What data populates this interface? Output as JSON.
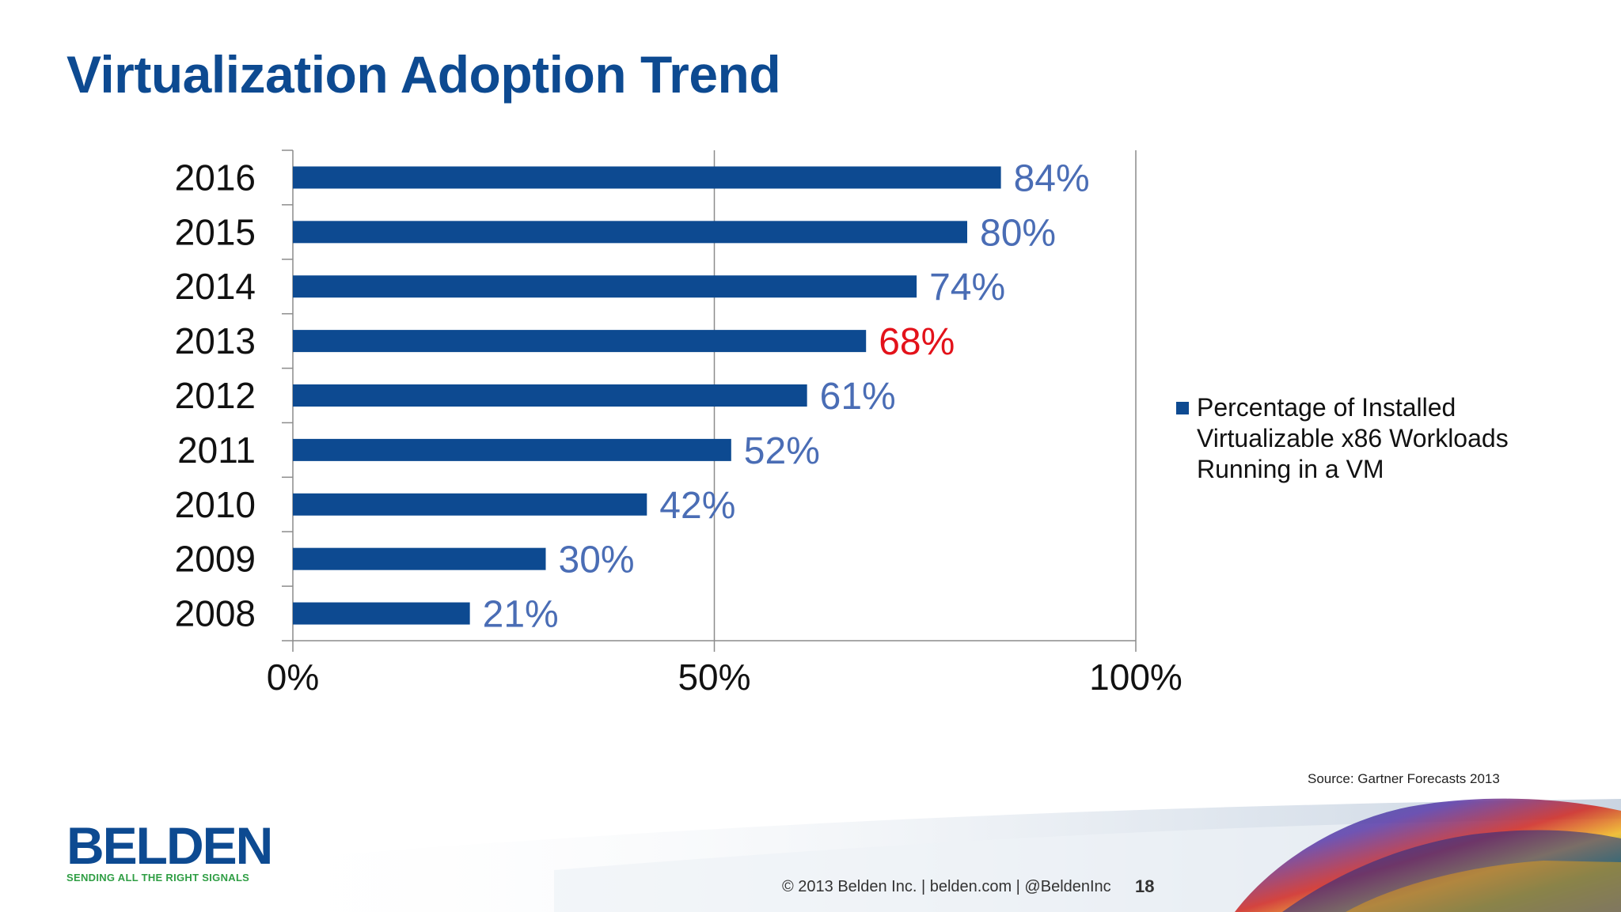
{
  "slide": {
    "title": "Virtualization Adoption Trend",
    "source": "Source: Gartner Forecasts 2013",
    "footer": "© 2013 Belden Inc.  |  belden.com  |  @BeldenInc",
    "page_number": "18",
    "logo": {
      "word": "BELDEN",
      "tagline": "SENDING ALL THE RIGHT SIGNALS"
    }
  },
  "chart_data": {
    "type": "bar",
    "orientation": "horizontal",
    "title": "",
    "xlabel": "",
    "ylabel": "",
    "categories": [
      "2016",
      "2015",
      "2014",
      "2013",
      "2012",
      "2011",
      "2010",
      "2009",
      "2008"
    ],
    "series": [
      {
        "name": "Percentage of Installed Virtualizable x86 Workloads Running in a VM",
        "values": [
          84,
          80,
          74,
          68,
          61,
          52,
          42,
          30,
          21
        ],
        "labels": [
          "84%",
          "80%",
          "74%",
          "68%",
          "61%",
          "52%",
          "42%",
          "30%",
          "21%"
        ],
        "color": "#0d4a91"
      }
    ],
    "xlim": [
      0,
      100
    ],
    "xticks": [
      0,
      50,
      100
    ],
    "xtick_labels": [
      "0%",
      "50%",
      "100%"
    ],
    "grid": "vertical",
    "legend": "right",
    "label_color": "#4a6db5",
    "highlight": {
      "category": "2013",
      "label_color": "#e3121a"
    }
  }
}
